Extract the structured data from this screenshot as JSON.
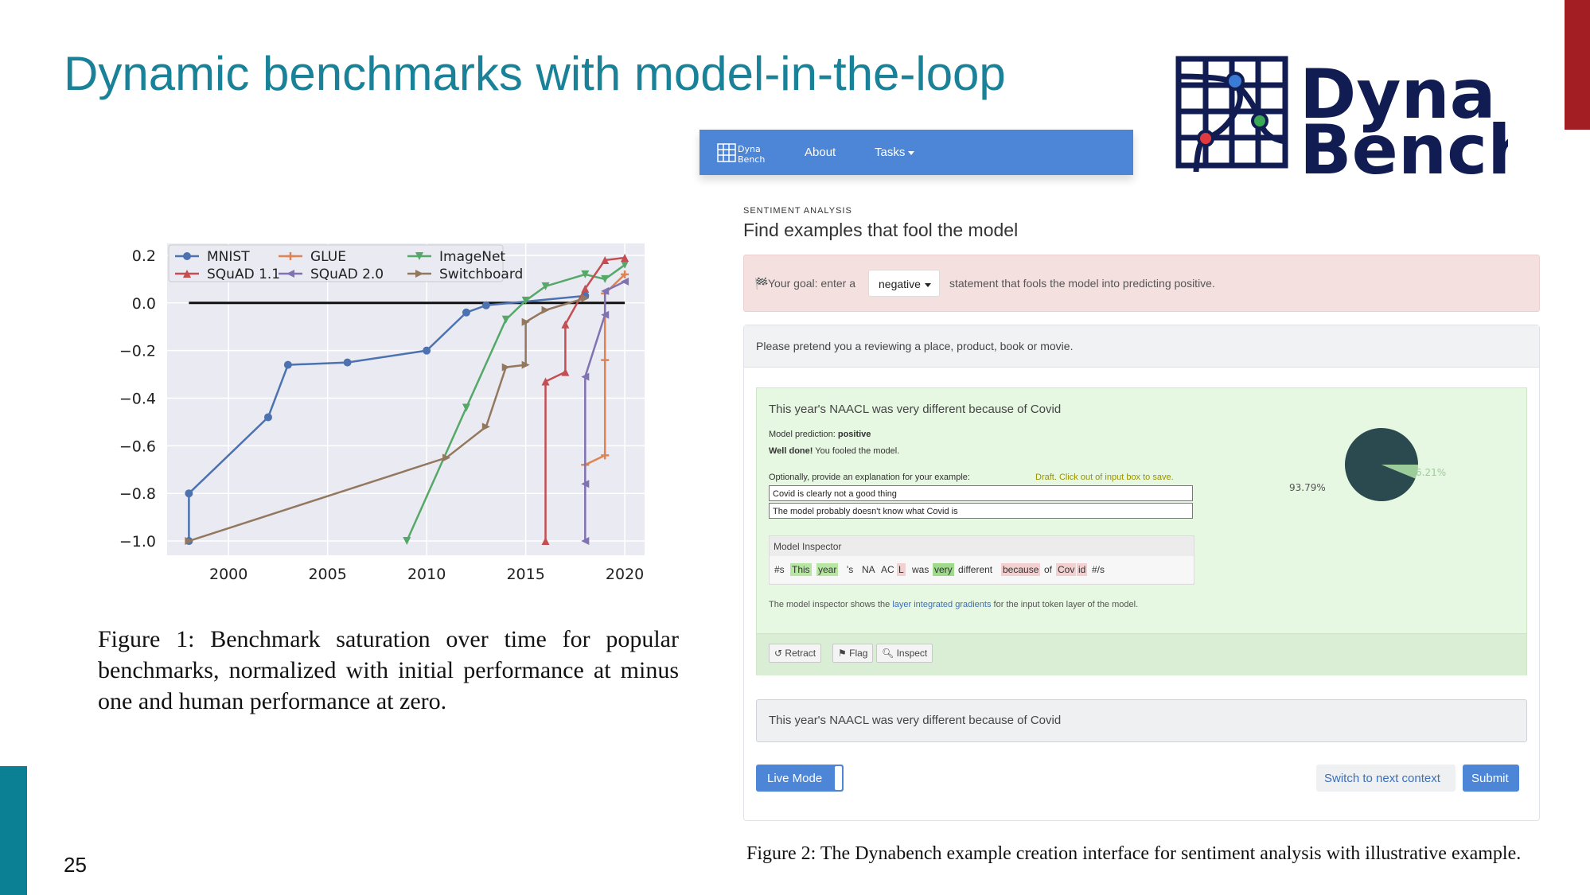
{
  "slide": {
    "title": "Dynamic benchmarks with model-in-the-loop",
    "page_number": "25",
    "colors": {
      "title": "#1a8298",
      "accent_right": "#a31e22",
      "accent_left": "#0b7f94"
    }
  },
  "logo": {
    "line1": "Dyna",
    "line2": "Bench",
    "color": "#101c52"
  },
  "figure1": {
    "caption": "Figure 1: Benchmark saturation over time for popular benchmarks, normalized with initial performance at minus one and human performance at zero."
  },
  "figure2": {
    "caption": "Figure 2: The Dynabench example creation interface for sentiment analysis with illustrative example."
  },
  "chart_data": {
    "type": "line",
    "title": "",
    "xlabel": "",
    "ylabel": "",
    "xlim": [
      1996.9,
      2021.0
    ],
    "ylim": [
      -1.06,
      0.25
    ],
    "x_ticks": [
      "2000",
      "2005",
      "2010",
      "2015",
      "2020"
    ],
    "y_ticks": [
      "0.2",
      "0.0",
      "−0.2",
      "−0.4",
      "−0.6",
      "−0.8",
      "−1.0"
    ],
    "grid": true,
    "legend_placement": "top-left",
    "reference_line": 0.0,
    "series": [
      {
        "name": "MNIST",
        "color": "#4c72b0",
        "marker": "circle",
        "points": [
          [
            1998,
            -1.0
          ],
          [
            1998,
            -0.8
          ],
          [
            2002,
            -0.48
          ],
          [
            2003,
            -0.26
          ],
          [
            2006,
            -0.25
          ],
          [
            2010,
            -0.2
          ],
          [
            2012,
            -0.04
          ],
          [
            2013,
            -0.01
          ],
          [
            2018,
            0.03
          ]
        ]
      },
      {
        "name": "GLUE",
        "color": "#dd8452",
        "marker": "plus",
        "points": [
          [
            2018,
            -0.68
          ],
          [
            2019,
            -0.64
          ],
          [
            2019,
            -0.24
          ],
          [
            2019,
            0.04
          ],
          [
            2020,
            0.12
          ]
        ]
      },
      {
        "name": "ImageNet",
        "color": "#55a868",
        "marker": "triangle-down",
        "points": [
          [
            2009,
            -1.0
          ],
          [
            2012,
            -0.44
          ],
          [
            2014,
            -0.07
          ],
          [
            2015,
            0.01
          ],
          [
            2016,
            0.07
          ],
          [
            2018,
            0.12
          ],
          [
            2019,
            0.1
          ],
          [
            2020,
            0.16
          ]
        ]
      },
      {
        "name": "SQuAD 1.1",
        "color": "#c44e52",
        "marker": "triangle-up",
        "points": [
          [
            2016,
            -1.0
          ],
          [
            2016,
            -0.33
          ],
          [
            2017,
            -0.29
          ],
          [
            2017,
            -0.09
          ],
          [
            2018,
            0.06
          ],
          [
            2019,
            0.18
          ],
          [
            2020,
            0.19
          ]
        ]
      },
      {
        "name": "SQuAD 2.0",
        "color": "#8172b2",
        "marker": "triangle-left",
        "points": [
          [
            2018,
            -1.0
          ],
          [
            2018,
            -0.76
          ],
          [
            2018,
            -0.31
          ],
          [
            2019,
            -0.05
          ],
          [
            2019,
            0.05
          ],
          [
            2020,
            0.09
          ]
        ]
      },
      {
        "name": "Switchboard",
        "color": "#937860",
        "marker": "triangle-right",
        "points": [
          [
            1998,
            -1.0
          ],
          [
            2011,
            -0.65
          ],
          [
            2013,
            -0.52
          ],
          [
            2014,
            -0.27
          ],
          [
            2015,
            -0.26
          ],
          [
            2015,
            -0.08
          ],
          [
            2016,
            -0.03
          ],
          [
            2018,
            0.02
          ]
        ]
      }
    ]
  },
  "dynabench_ui": {
    "navbar": {
      "logo_text": "Dyna Bench",
      "about": "About",
      "tasks": "Tasks"
    },
    "task_kicker": "SENTIMENT ANALYSIS",
    "heading": "Find examples that fool the model",
    "goal": {
      "prefix": "Your goal: enter a",
      "select_value": "negative",
      "suffix": "statement that fools the model into predicting positive."
    },
    "context_header": "Please pretend you a reviewing a place, product, book or movie.",
    "example": {
      "text": "This year's NAACL was very different because of Covid",
      "prediction_label": "Model prediction:",
      "prediction_value": "positive",
      "well_done": "Well done!",
      "fooled": "You fooled the model.",
      "explanation_prompt": "Optionally, provide an explanation for your example:",
      "draft_note": "Draft. Click out of input box to save.",
      "explanation_1": "Covid is clearly not a good thing",
      "explanation_2": "The model probably doesn't know what Covid is",
      "pie": {
        "positive_pct": 93.79,
        "negative_pct": 6.21,
        "label_positive": "93.79%",
        "label_negative": "6.21%",
        "colors": [
          "#2b4a4f",
          "#9ccc9a"
        ]
      }
    },
    "inspector": {
      "title": "Model Inspector",
      "tokens": [
        "#s",
        "This",
        "year",
        "'s",
        "NA",
        "AC",
        "L",
        "was",
        "very",
        "different",
        "because",
        "of",
        "Cov",
        "id",
        "#/s"
      ],
      "note_prefix": "The model inspector shows the",
      "note_link": "layer integrated gradients",
      "note_suffix": "for the input token layer of the model."
    },
    "actions": {
      "retract": "Retract",
      "flag": "Flag",
      "inspect": "Inspect"
    },
    "second_example": "This year's NAACL was very different because of Covid",
    "live_mode": "Live Mode",
    "switch_context": "Switch to next context",
    "submit": "Submit"
  }
}
